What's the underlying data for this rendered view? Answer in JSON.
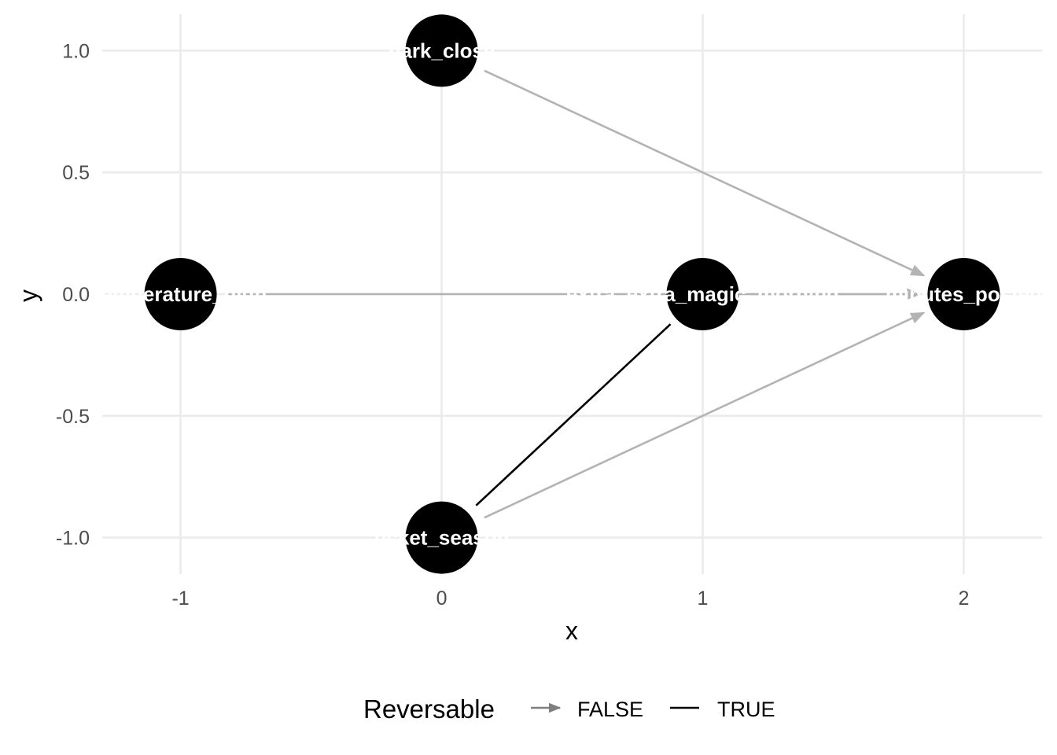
{
  "chart_data": {
    "type": "dag",
    "xlabel": "x",
    "ylabel": "y",
    "xlim": [
      -1.3,
      2.3
    ],
    "ylim": [
      -1.15,
      1.15
    ],
    "x_ticks": [
      -1,
      0,
      1,
      2
    ],
    "x_tick_labels": [
      "-1",
      "0",
      "1",
      "2"
    ],
    "y_ticks": [
      -1,
      -0.5,
      0,
      0.5,
      1
    ],
    "y_tick_labels": [
      "-1.0",
      "-0.5",
      "0.0",
      "0.5",
      "1.0"
    ],
    "grid": true,
    "nodes": [
      {
        "id": "park_close",
        "label": "park_close",
        "x": 0,
        "y": 1
      },
      {
        "id": "temperature",
        "label": "temperature_high",
        "x": -1,
        "y": 0
      },
      {
        "id": "extra_magic",
        "label": "extra_extra_magic_morning",
        "x": 1,
        "y": 0
      },
      {
        "id": "minutes_posted",
        "label": "minutes_posted",
        "x": 2,
        "y": 0
      },
      {
        "id": "ticket_season",
        "label": "ticket_season",
        "x": 0,
        "y": -1
      }
    ],
    "edges": [
      {
        "from": "park_close",
        "to": "minutes_posted",
        "reversable": "FALSE"
      },
      {
        "from": "temperature",
        "to": "minutes_posted",
        "reversable": "FALSE"
      },
      {
        "from": "extra_magic",
        "to": "minutes_posted",
        "reversable": "FALSE"
      },
      {
        "from": "ticket_season",
        "to": "minutes_posted",
        "reversable": "FALSE"
      },
      {
        "from": "ticket_season",
        "to": "extra_magic",
        "reversable": "TRUE"
      }
    ],
    "legend": {
      "title": "Reversable",
      "placement": "bottom",
      "entries": [
        {
          "label": "FALSE",
          "color": "#7f7f7f",
          "style": "arrow"
        },
        {
          "label": "TRUE",
          "color": "#000000",
          "style": "line"
        }
      ]
    },
    "colors": {
      "node_fill": "#000000",
      "node_text": "#ffffff",
      "edge_false": "#b3b3b3",
      "edge_true": "#000000",
      "grid": "#ebebeb"
    }
  }
}
